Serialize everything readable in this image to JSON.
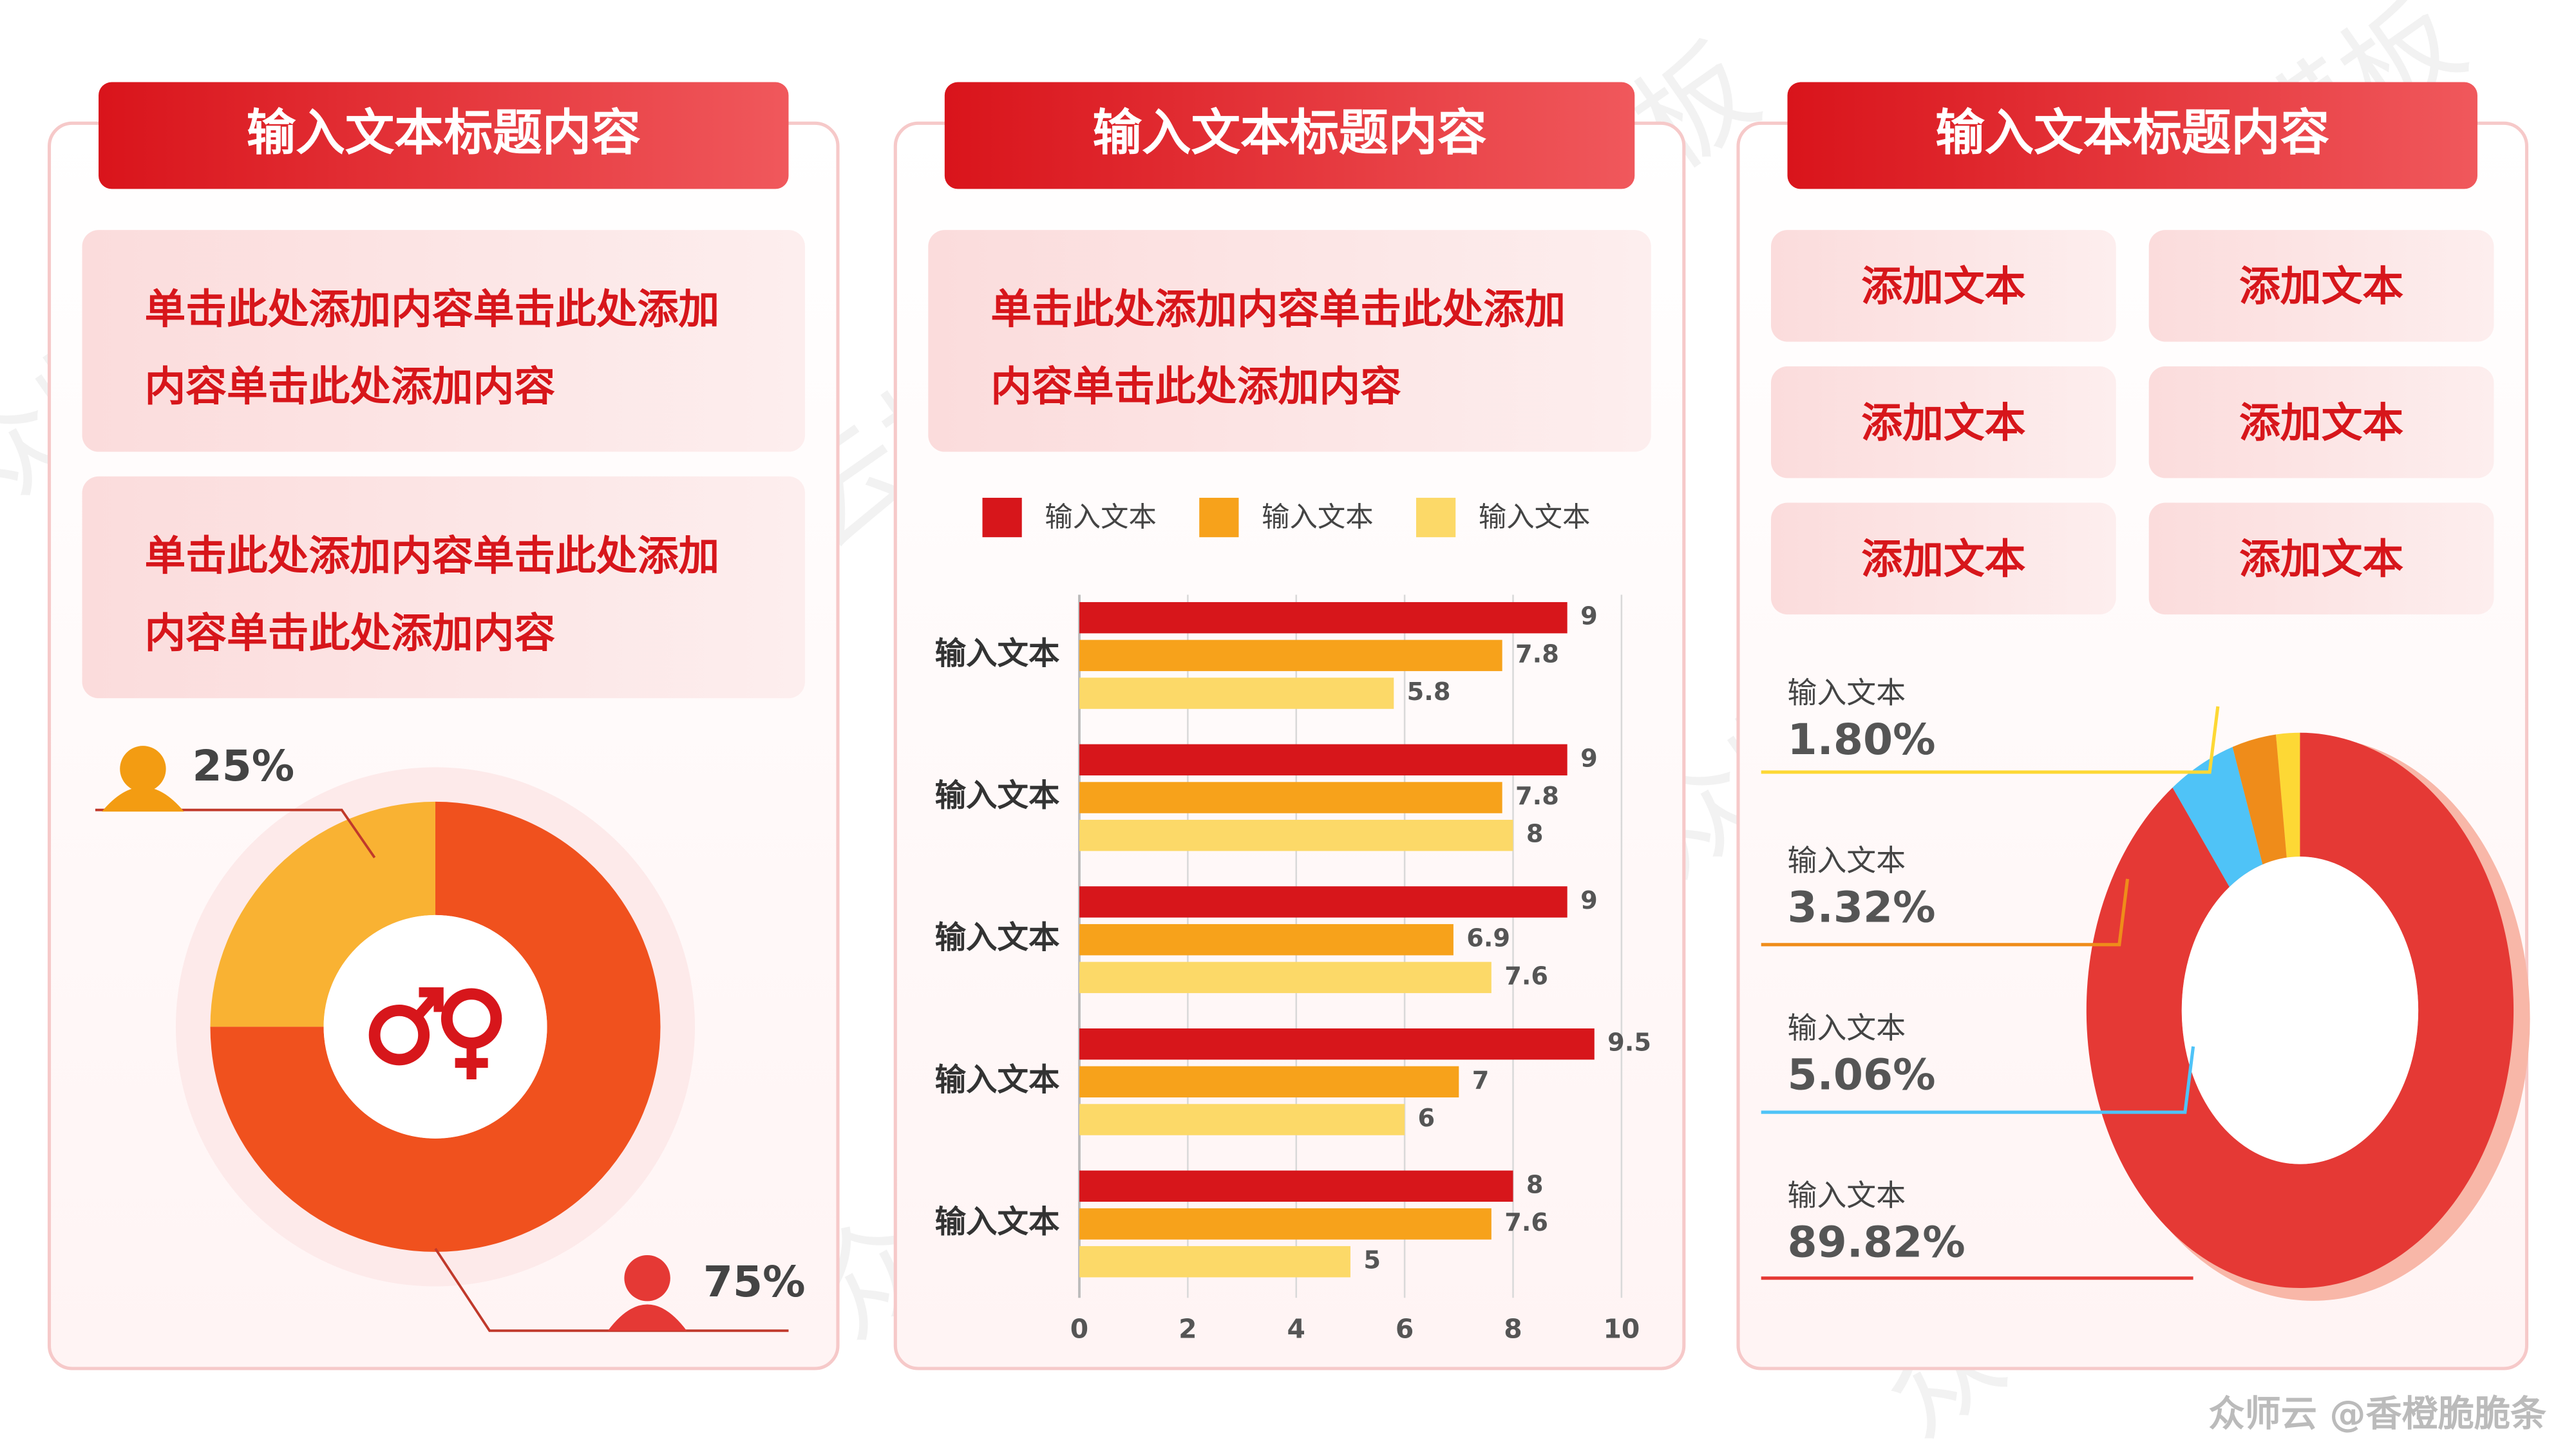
{
  "watermark": "众师云模板",
  "credit": "众师云 @香橙脆脆条",
  "panels": [
    {
      "title": "输入文本标题内容",
      "texts": [
        [
          "单击此处添加内容单击此处添加",
          "内容单击此处添加内容"
        ],
        [
          "单击此处添加内容单击此处添加",
          "内容单击此处添加内容"
        ]
      ]
    },
    {
      "title": "输入文本标题内容",
      "texts": [
        [
          "单击此处添加内容单击此处添加",
          "内容单击此处添加内容"
        ]
      ]
    },
    {
      "title": "输入文本标题内容",
      "buttons": [
        "添加文本",
        "添加文本",
        "添加文本",
        "添加文本",
        "添加文本",
        "添加文本"
      ]
    }
  ],
  "chart_data": [
    {
      "type": "pie",
      "values": [
        25,
        75
      ],
      "value_labels": [
        "25%",
        "75%"
      ],
      "colors": [
        "#f9b233",
        "#f0511e"
      ]
    },
    {
      "type": "bar",
      "orientation": "horizontal",
      "categories": [
        "输入文本",
        "输入文本",
        "输入文本",
        "输入文本",
        "输入文本"
      ],
      "series": [
        {
          "name": "输入文本",
          "color": "#d7161b",
          "values": [
            9,
            9,
            9,
            9.5,
            8
          ]
        },
        {
          "name": "输入文本",
          "color": "#f7a21b",
          "values": [
            7.8,
            7.8,
            6.9,
            7,
            7.6
          ]
        },
        {
          "name": "输入文本",
          "color": "#fcd968",
          "values": [
            5.8,
            8,
            7.6,
            6,
            5
          ]
        }
      ],
      "xlim": [
        0,
        10
      ],
      "xticks": [
        0,
        2,
        4,
        6,
        8,
        10
      ],
      "grid": true
    },
    {
      "type": "donut",
      "categories": [
        "输入文本",
        "输入文本",
        "输入文本",
        "输入文本"
      ],
      "values": [
        1.8,
        3.32,
        5.06,
        89.82
      ],
      "value_labels": [
        "1.80%",
        "3.32%",
        "5.06%",
        "89.82%"
      ],
      "colors": [
        "#fdd835",
        "#ef8c1a",
        "#4fc3f7",
        "#e53935"
      ]
    }
  ]
}
